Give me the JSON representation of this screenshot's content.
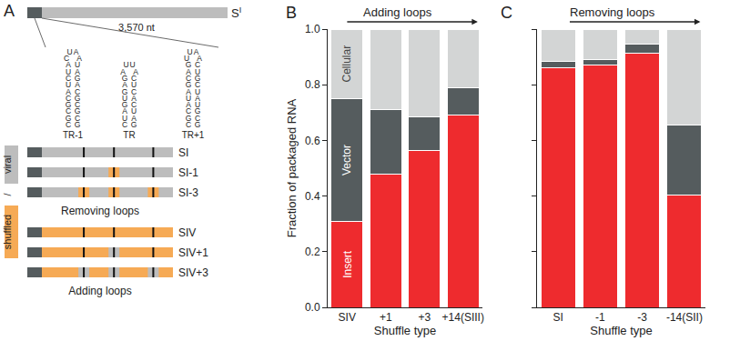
{
  "chart_data": [
    {
      "type": "bar",
      "panel_label": "B",
      "title": "Adding loops",
      "stacked": true,
      "categories": [
        "SIV",
        "+1",
        "+3",
        "+14(SIII)"
      ],
      "xlabel": "Shuffle type",
      "ylabel": "Fraction of packaged RNA",
      "ylim": [
        0,
        1
      ],
      "yticks": [
        {
          "value": 0,
          "label": "0.0"
        },
        0.2,
        0.4,
        0.6,
        0.8,
        {
          "value": 1,
          "label": "1.0"
        }
      ],
      "series": [
        {
          "name": "Insert",
          "color": "#ee2b2e",
          "values": [
            0.31,
            0.48,
            0.565,
            0.69
          ]
        },
        {
          "name": "Vector",
          "color": "#555c5e",
          "values": [
            0.44,
            0.23,
            0.12,
            0.1
          ]
        },
        {
          "name": "Cellular",
          "color": "#d3d5d5",
          "values": [
            0.25,
            0.29,
            0.315,
            0.21
          ]
        }
      ]
    },
    {
      "type": "bar",
      "panel_label": "C",
      "title": "Removing loops",
      "stacked": true,
      "tick_labels": "x",
      "categories": [
        "SI",
        "-1",
        "-3",
        "-14(SII)"
      ],
      "xlabel": "Shuffle type",
      "ylim": [
        0,
        1
      ],
      "yticks": [
        0,
        0.2,
        0.4,
        0.6,
        0.8,
        1
      ],
      "series": [
        {
          "color": "#ee2b2e",
          "values": [
            0.86,
            0.87,
            0.915,
            0.405
          ]
        },
        {
          "color": "#555c5e",
          "values": [
            0.025,
            0.02,
            0.03,
            0.25
          ]
        },
        {
          "color": "#d3d5d5",
          "values": [
            0.115,
            0.11,
            0.055,
            0.345
          ]
        }
      ]
    }
  ],
  "diagram": {
    "panel_label": "A",
    "genome": {
      "label": "S",
      "superscript": "I",
      "length_label": "3,570 nt"
    },
    "hairpins": [
      {
        "name": "TR-1",
        "loop": [
          [
            "U",
            "A"
          ],
          [
            "C",
            "A"
          ]
        ],
        "stem": [
          [
            "A",
            "U"
          ],
          [
            "U",
            "A"
          ],
          [
            "C",
            "G"
          ],
          [
            "U",
            "A"
          ],
          [
            "A",
            "C"
          ],
          [
            "C",
            "G"
          ],
          [
            "G",
            "C"
          ],
          [
            "C",
            "G"
          ],
          [
            "G",
            "C"
          ],
          [
            "C",
            "G"
          ]
        ]
      },
      {
        "name": "TR",
        "loop": [
          [
            "U",
            "U"
          ],
          [
            "A",
            "A"
          ]
        ],
        "stem": [
          [
            "G",
            "C"
          ],
          [
            "A",
            "U"
          ],
          [
            "G",
            "C"
          ],
          [
            "U",
            "A"
          ],
          [
            "G",
            "C"
          ],
          [
            "A",
            "U"
          ],
          [
            "U",
            "A"
          ],
          [
            "C",
            "G"
          ]
        ]
      },
      {
        "name": "TR+1",
        "loop": [
          [
            "U",
            "A"
          ],
          [
            "U",
            "A"
          ]
        ],
        "stem": [
          [
            "G",
            "C"
          ],
          [
            "A",
            "U"
          ],
          [
            "C",
            "G"
          ],
          [
            "G",
            "C"
          ],
          [
            "A",
            "U"
          ],
          [
            "U",
            "A"
          ],
          [
            "A",
            "U"
          ],
          [
            "C",
            "G"
          ],
          [
            "G",
            "C"
          ],
          [
            "C",
            "G"
          ]
        ]
      }
    ],
    "constructs": [
      {
        "name": "SI",
        "base": "viral",
        "swapped": []
      },
      {
        "name": "SI-1",
        "base": "viral",
        "swapped": [
          "TR"
        ]
      },
      {
        "name": "SI-3",
        "base": "viral",
        "swapped": [
          "TR-1",
          "TR",
          "TR+1"
        ]
      },
      {
        "name": "SIV",
        "base": "shuffled",
        "swapped": []
      },
      {
        "name": "SIV+1",
        "base": "shuffled",
        "swapped": [
          "TR"
        ]
      },
      {
        "name": "SIV+3",
        "base": "shuffled",
        "swapped": [
          "TR-1",
          "TR",
          "TR+1"
        ]
      }
    ],
    "groups": [
      {
        "label": "Removing loops",
        "constructs": [
          0,
          1,
          2
        ]
      },
      {
        "label": "Adding loops",
        "constructs": [
          3,
          4,
          5
        ]
      }
    ],
    "side_labels": {
      "top": "viral",
      "separator": "/",
      "bottom": "shuffled"
    }
  }
}
